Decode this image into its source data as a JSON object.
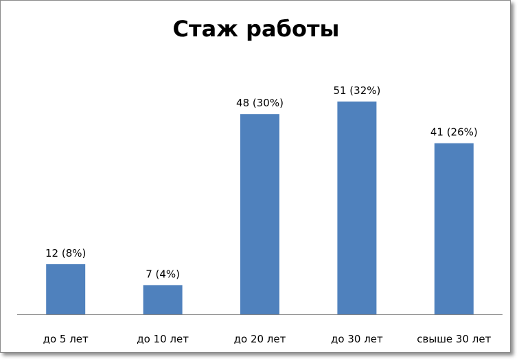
{
  "chart_data": {
    "type": "bar",
    "title": "Стаж работы",
    "categories": [
      "до 5 лет",
      "до 10 лет",
      "до 20 лет",
      "до 30 лет",
      "свыше 30 лет"
    ],
    "values": [
      12,
      7,
      48,
      51,
      41
    ],
    "data_labels": [
      "12 (8%)",
      "7 (4%)",
      "48 (30%)",
      "51 (32%)",
      "41 (26%)"
    ],
    "percent": [
      8,
      4,
      30,
      32,
      26
    ],
    "bar_color": "#4F81BD",
    "xlabel": "",
    "ylabel": "",
    "ylim": [
      0,
      60
    ],
    "grid": false,
    "legend": "none"
  }
}
